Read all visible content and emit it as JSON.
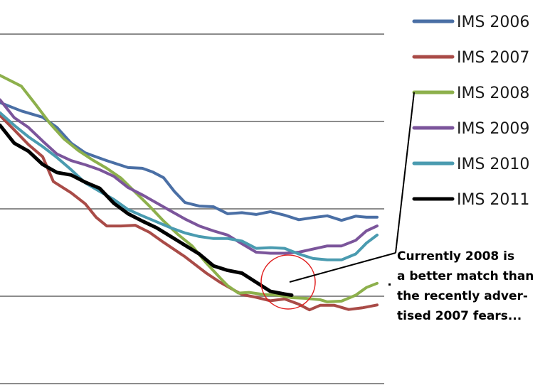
{
  "chart_data": {
    "type": "line",
    "title": "",
    "xlabel": "",
    "ylabel": "",
    "grid": true,
    "legend_position": "right",
    "x": [
      0,
      1,
      2,
      3,
      4,
      5,
      6,
      7,
      8,
      9,
      10,
      11,
      12,
      13,
      14,
      15,
      16,
      17,
      18,
      19,
      20,
      21,
      22,
      23,
      24,
      25,
      26,
      27,
      28,
      29,
      30,
      31,
      32,
      33,
      34,
      35,
      36,
      37,
      38,
      39,
      40,
      41,
      42,
      43,
      44,
      45,
      46,
      47,
      48,
      49,
      50,
      51,
      52,
      53,
      54,
      55,
      56,
      57,
      58,
      59,
      60,
      61,
      62,
      63,
      64,
      65,
      66,
      67,
      68,
      69,
      70,
      71,
      72,
      73,
      74,
      75,
      76,
      77,
      78,
      79,
      80,
      81,
      82,
      83,
      84,
      85,
      86,
      87,
      88,
      89,
      90,
      91,
      92,
      93,
      94,
      95,
      96,
      97,
      98,
      99,
      100,
      101,
      102,
      103,
      104,
      105,
      106,
      107,
      108,
      109,
      110,
      111,
      112,
      113,
      114,
      115,
      116,
      117,
      118,
      119,
      120,
      121,
      122,
      123,
      124,
      125,
      126,
      127,
      128,
      129,
      130,
      131,
      132,
      133,
      134,
      135,
      136,
      137,
      138,
      139,
      140,
      141,
      142,
      143,
      144,
      145,
      146,
      147,
      148,
      149,
      150,
      151,
      152,
      153,
      154,
      155,
      156,
      157,
      158,
      159,
      160,
      161,
      162,
      163,
      164,
      165,
      166,
      167,
      168,
      169,
      170,
      171,
      172,
      173,
      174,
      175,
      176,
      177,
      178,
      179,
      180,
      181,
      182,
      183,
      184,
      185,
      186,
      187,
      188,
      189,
      190,
      191,
      192,
      193,
      194,
      195,
      196,
      197,
      198,
      199,
      200,
      201,
      202,
      203,
      204,
      205,
      206,
      207,
      208,
      209,
      210,
      211,
      212,
      213,
      214,
      215,
      216,
      217,
      218,
      219,
      220,
      221,
      222,
      223,
      224,
      225,
      226,
      227,
      228,
      229,
      230,
      231,
      232,
      233,
      234,
      235,
      236,
      237,
      238,
      239,
      240,
      241,
      242,
      243,
      244,
      245,
      246,
      247,
      248,
      249,
      250,
      251,
      252,
      253,
      254,
      255,
      256,
      257,
      258,
      259,
      260,
      261,
      262,
      263,
      264,
      265,
      266,
      267,
      268,
      269,
      270,
      271,
      272,
      273,
      274,
      275,
      276,
      277,
      278,
      279,
      280,
      281,
      282,
      283,
      284,
      285,
      286,
      287,
      288,
      289,
      290,
      291,
      292,
      293,
      294,
      295,
      296,
      297,
      298,
      299,
      300,
      301,
      302,
      303,
      304,
      305,
      306,
      307,
      308,
      309,
      310,
      311,
      312,
      313,
      314,
      315,
      316,
      317,
      318,
      319,
      320,
      321,
      322,
      323,
      324,
      325,
      326,
      327,
      328,
      329,
      330,
      331,
      332,
      333,
      334,
      335,
      336,
      337,
      338,
      339,
      340,
      341,
      342,
      343,
      344,
      345,
      346,
      347,
      348,
      349,
      350,
      351,
      352,
      353,
      354,
      355,
      356,
      357,
      358,
      359,
      360,
      361,
      362,
      363,
      364,
      365,
      366,
      367,
      368,
      369,
      370,
      371,
      372,
      373,
      374,
      375,
      376,
      377,
      378,
      379,
      380,
      381,
      382,
      383,
      384,
      385,
      386,
      387,
      388,
      389,
      390,
      391,
      392,
      393,
      394,
      395,
      396,
      397,
      398,
      399,
      400,
      401,
      402,
      403,
      404,
      405,
      406,
      407,
      408,
      409,
      410,
      411,
      412,
      413,
      414,
      415,
      416,
      417,
      418,
      419,
      420,
      421,
      422,
      423,
      424,
      425,
      426,
      427,
      428,
      429,
      430,
      431,
      432,
      433,
      434,
      435,
      436,
      437,
      438,
      439,
      440,
      441,
      442,
      443,
      444,
      445,
      446,
      447,
      448,
      449,
      450,
      451,
      452,
      453,
      454,
      455,
      456,
      457,
      458,
      459,
      460,
      461,
      462,
      463,
      464,
      465,
      466,
      467,
      468,
      469,
      470,
      471,
      472,
      473,
      474,
      475,
      476,
      477,
      478,
      479,
      480,
      481,
      482,
      483,
      484,
      485,
      486,
      487,
      488,
      489,
      490,
      491,
      492,
      493,
      494,
      495,
      496,
      497,
      498,
      499,
      500,
      501,
      502,
      503,
      504,
      505,
      506,
      507,
      508,
      509,
      510,
      511,
      512,
      513,
      514,
      515,
      516,
      517,
      518,
      519,
      520,
      521,
      522,
      523,
      524,
      525,
      526,
      527,
      528,
      529,
      530
    ],
    "x_sampled_every": 1,
    "xlim": [
      0,
      530
    ],
    "ylim": [
      0,
      100
    ],
    "gridlines": [
      0,
      25,
      50,
      75,
      100
    ],
    "series": [
      {
        "name": "IMS 2006",
        "color": "#4a6fa5",
        "points": [
          [
            0,
            80.4
          ],
          [
            30,
            78.0
          ],
          [
            60,
            76.2
          ],
          [
            80,
            73.3
          ],
          [
            100,
            68.8
          ],
          [
            120,
            66.0
          ],
          [
            150,
            63.8
          ],
          [
            180,
            61.8
          ],
          [
            200,
            61.6
          ],
          [
            215,
            60.5
          ],
          [
            230,
            58.9
          ],
          [
            245,
            55.0
          ],
          [
            260,
            51.8
          ],
          [
            280,
            50.8
          ],
          [
            300,
            50.6
          ],
          [
            320,
            48.6
          ],
          [
            340,
            48.9
          ],
          [
            360,
            48.4
          ],
          [
            380,
            49.2
          ],
          [
            400,
            48.2
          ],
          [
            420,
            46.9
          ],
          [
            440,
            47.5
          ],
          [
            460,
            48.0
          ],
          [
            480,
            46.7
          ],
          [
            500,
            47.9
          ],
          [
            515,
            47.6
          ],
          [
            530,
            47.6
          ]
        ]
      },
      {
        "name": "IMS 2007",
        "color": "#a94b47",
        "points": [
          [
            0,
            76.7
          ],
          [
            20,
            72.6
          ],
          [
            40,
            68.4
          ],
          [
            60,
            64.9
          ],
          [
            75,
            57.8
          ],
          [
            100,
            54.6
          ],
          [
            120,
            51.4
          ],
          [
            135,
            47.6
          ],
          [
            150,
            45.1
          ],
          [
            170,
            45.1
          ],
          [
            190,
            45.3
          ],
          [
            210,
            43.3
          ],
          [
            230,
            40.4
          ],
          [
            260,
            36.3
          ],
          [
            290,
            31.6
          ],
          [
            310,
            28.9
          ],
          [
            325,
            27.2
          ],
          [
            340,
            25.5
          ],
          [
            360,
            24.7
          ],
          [
            380,
            23.7
          ],
          [
            400,
            24.2
          ],
          [
            420,
            22.7
          ],
          [
            435,
            21.1
          ],
          [
            450,
            22.4
          ],
          [
            470,
            22.4
          ],
          [
            490,
            21.2
          ],
          [
            510,
            21.7
          ],
          [
            530,
            22.5
          ]
        ]
      },
      {
        "name": "IMS 2008",
        "color": "#8db04c",
        "points": [
          [
            0,
            88.2
          ],
          [
            30,
            85.1
          ],
          [
            50,
            79.9
          ],
          [
            70,
            74.5
          ],
          [
            90,
            70.0
          ],
          [
            110,
            66.7
          ],
          [
            130,
            64.0
          ],
          [
            150,
            61.6
          ],
          [
            170,
            58.8
          ],
          [
            190,
            54.8
          ],
          [
            210,
            50.8
          ],
          [
            230,
            46.5
          ],
          [
            250,
            42.7
          ],
          [
            270,
            39.4
          ],
          [
            290,
            34.5
          ],
          [
            310,
            30.1
          ],
          [
            320,
            28.0
          ],
          [
            335,
            25.9
          ],
          [
            350,
            26.1
          ],
          [
            370,
            25.5
          ],
          [
            390,
            25.3
          ],
          [
            410,
            24.6
          ],
          [
            430,
            24.4
          ],
          [
            450,
            24.0
          ],
          [
            460,
            23.4
          ],
          [
            480,
            23.6
          ],
          [
            500,
            25.3
          ],
          [
            515,
            27.5
          ],
          [
            530,
            28.7
          ]
        ]
      },
      {
        "name": "IMS 2009",
        "color": "#7b559b",
        "points": [
          [
            0,
            81.2
          ],
          [
            20,
            76.1
          ],
          [
            40,
            73.3
          ],
          [
            60,
            69.4
          ],
          [
            80,
            65.7
          ],
          [
            100,
            63.8
          ],
          [
            120,
            62.6
          ],
          [
            140,
            61.2
          ],
          [
            160,
            59.3
          ],
          [
            180,
            56.1
          ],
          [
            200,
            54.0
          ],
          [
            220,
            51.7
          ],
          [
            240,
            49.4
          ],
          [
            260,
            47.1
          ],
          [
            280,
            45.1
          ],
          [
            300,
            43.7
          ],
          [
            320,
            42.5
          ],
          [
            340,
            40.0
          ],
          [
            360,
            37.6
          ],
          [
            380,
            37.3
          ],
          [
            400,
            37.3
          ],
          [
            420,
            37.6
          ],
          [
            440,
            38.5
          ],
          [
            460,
            39.4
          ],
          [
            480,
            39.4
          ],
          [
            500,
            41.0
          ],
          [
            515,
            43.7
          ],
          [
            530,
            45.1
          ]
        ]
      },
      {
        "name": "IMS 2010",
        "color": "#4a9bb0",
        "points": [
          [
            0,
            77.5
          ],
          [
            20,
            73.9
          ],
          [
            40,
            70.6
          ],
          [
            60,
            67.8
          ],
          [
            80,
            64.7
          ],
          [
            100,
            61.2
          ],
          [
            120,
            57.4
          ],
          [
            140,
            55.0
          ],
          [
            160,
            52.7
          ],
          [
            180,
            49.8
          ],
          [
            200,
            48.0
          ],
          [
            220,
            46.3
          ],
          [
            240,
            44.6
          ],
          [
            260,
            43.1
          ],
          [
            280,
            42.1
          ],
          [
            300,
            41.5
          ],
          [
            320,
            41.5
          ],
          [
            340,
            40.8
          ],
          [
            360,
            38.7
          ],
          [
            380,
            38.9
          ],
          [
            400,
            38.7
          ],
          [
            420,
            37.1
          ],
          [
            440,
            35.8
          ],
          [
            460,
            35.4
          ],
          [
            480,
            35.4
          ],
          [
            500,
            37.1
          ],
          [
            515,
            40.2
          ],
          [
            530,
            42.5
          ]
        ]
      },
      {
        "name": "IMS 2011",
        "color": "#000000",
        "points": [
          [
            0,
            73.9
          ],
          [
            20,
            68.8
          ],
          [
            40,
            66.5
          ],
          [
            60,
            62.7
          ],
          [
            80,
            60.4
          ],
          [
            100,
            59.7
          ],
          [
            120,
            57.6
          ],
          [
            140,
            55.9
          ],
          [
            160,
            51.6
          ],
          [
            180,
            48.6
          ],
          [
            200,
            46.5
          ],
          [
            220,
            44.6
          ],
          [
            240,
            42.1
          ],
          [
            260,
            39.6
          ],
          [
            280,
            37.1
          ],
          [
            300,
            33.7
          ],
          [
            320,
            32.4
          ],
          [
            340,
            31.6
          ],
          [
            360,
            29.0
          ],
          [
            380,
            26.4
          ],
          [
            400,
            25.6
          ],
          [
            410,
            25.3
          ]
        ]
      }
    ]
  },
  "annotation": {
    "lines": [
      "Currently 2008 is",
      "a better match than",
      "the recently adver-",
      "tised 2007 fears..."
    ]
  }
}
